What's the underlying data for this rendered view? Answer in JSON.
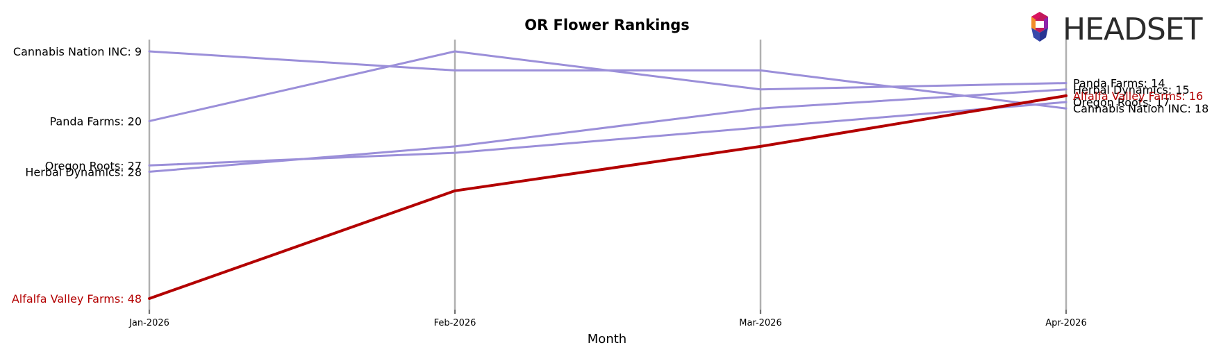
{
  "chart_data": {
    "type": "line",
    "title": "OR Flower Rankings",
    "xlabel": "Month",
    "ylabel": "",
    "categories": [
      "Jan-2026",
      "Feb-2026",
      "Mar-2026",
      "Apr-2026"
    ],
    "y_inverted": true,
    "ylim": [
      48,
      9
    ],
    "grid": "vertical lines at each month",
    "highlight_color": "#b30000",
    "default_color": "#9b8fd9",
    "series": [
      {
        "name": "Cannabis Nation INC",
        "values": [
          9,
          12,
          12,
          18
        ],
        "highlight": false,
        "start_label": "Cannabis Nation INC: 9",
        "end_label": "Cannabis Nation INC: 18"
      },
      {
        "name": "Panda Farms",
        "values": [
          20,
          9,
          15,
          14
        ],
        "highlight": false,
        "start_label": "Panda Farms: 20",
        "end_label": "Panda Farms: 14"
      },
      {
        "name": "Oregon Roots",
        "values": [
          27,
          25,
          21,
          17
        ],
        "highlight": false,
        "start_label": "Oregon Roots: 27",
        "end_label": "Oregon Roots: 17"
      },
      {
        "name": "Herbal Dynamics",
        "values": [
          28,
          24,
          18,
          15
        ],
        "highlight": false,
        "start_label": "Herbal Dynamics: 28",
        "end_label": "Herbal Dynamics: 15"
      },
      {
        "name": "Alfalfa Valley Farms",
        "values": [
          48,
          31,
          24,
          16
        ],
        "highlight": true,
        "start_label": "Alfalfa Valley Farms: 48",
        "end_label": "Alfalfa Valley Farms: 16"
      }
    ]
  },
  "logo": {
    "text": "HEADSET"
  }
}
